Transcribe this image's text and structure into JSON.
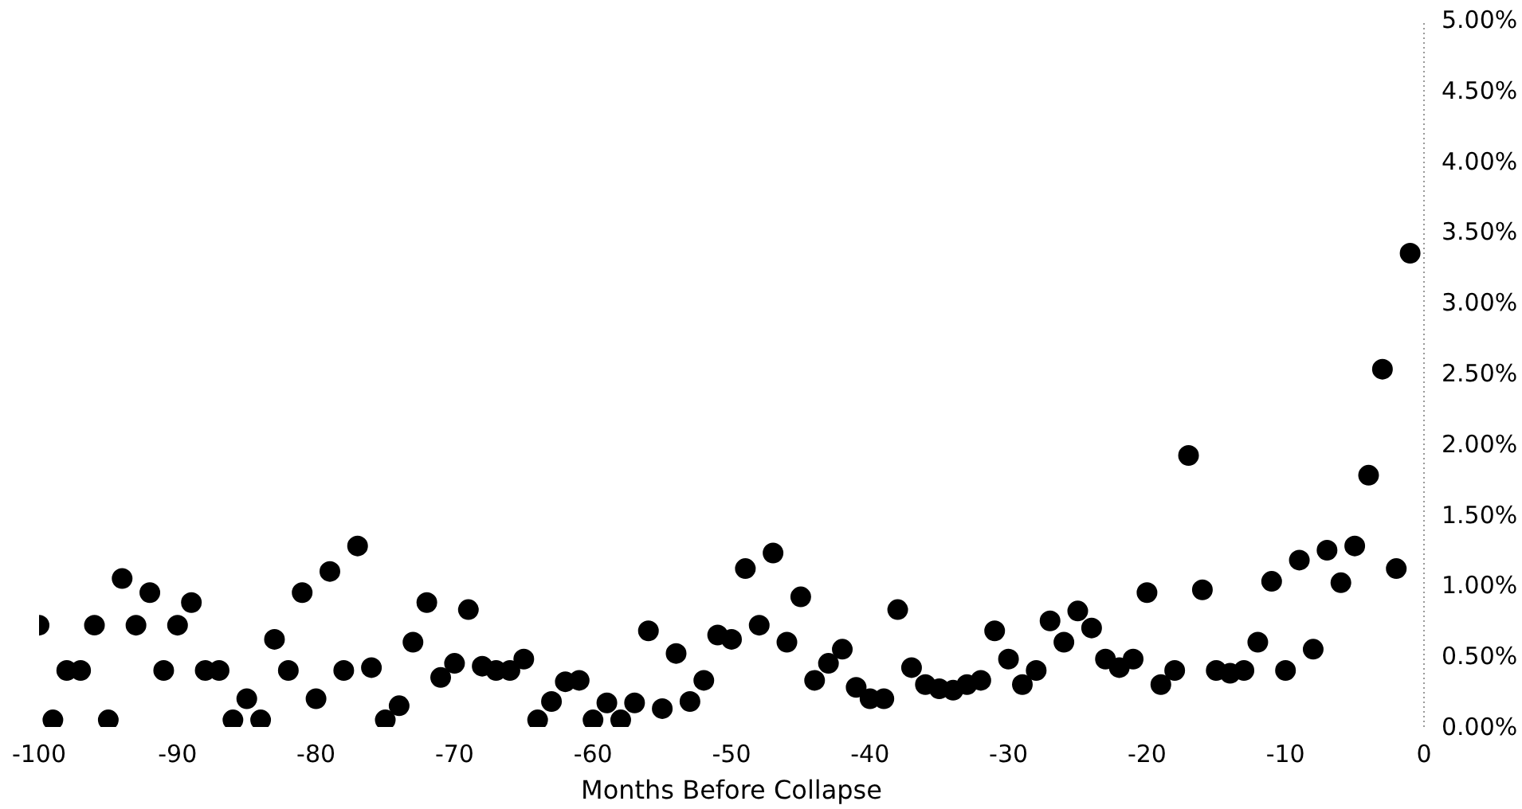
{
  "chart_data": {
    "type": "scatter",
    "xlabel": "Months Before Collapse",
    "x": [
      -100,
      -99,
      -98,
      -97,
      -96,
      -95,
      -94,
      -93,
      -92,
      -91,
      -90,
      -89,
      -88,
      -87,
      -86,
      -85,
      -84,
      -83,
      -82,
      -81,
      -80,
      -79,
      -78,
      -77,
      -76,
      -75,
      -74,
      -73,
      -72,
      -71,
      -70,
      -69,
      -68,
      -67,
      -66,
      -65,
      -64,
      -63,
      -62,
      -61,
      -60,
      -59,
      -58,
      -57,
      -56,
      -55,
      -54,
      -53,
      -52,
      -51,
      -50,
      -49,
      -48,
      -47,
      -46,
      -45,
      -44,
      -43,
      -42,
      -41,
      -40,
      -39,
      -38,
      -37,
      -36,
      -35,
      -34,
      -33,
      -32,
      -31,
      -30,
      -29,
      -28,
      -27,
      -26,
      -25,
      -24,
      -23,
      -22,
      -21,
      -20,
      -19,
      -18,
      -17,
      -16,
      -15,
      -14,
      -13,
      -12,
      -11,
      -10,
      -9,
      -8,
      -7,
      -6,
      -5,
      -4,
      -3,
      -2,
      -1
    ],
    "series": [
      {
        "color": "#000000",
        "values": [
          0.72,
          0.05,
          0.4,
          0.4,
          0.72,
          0.05,
          1.05,
          0.72,
          0.95,
          0.4,
          0.72,
          0.88,
          0.4,
          0.4,
          0.05,
          0.2,
          0.05,
          0.62,
          0.4,
          0.95,
          0.2,
          1.1,
          0.4,
          1.28,
          0.42,
          0.05,
          0.15,
          0.6,
          0.88,
          0.35,
          0.45,
          0.83,
          0.43,
          0.4,
          0.4,
          0.48,
          0.05,
          0.18,
          0.32,
          0.33,
          0.05,
          0.17,
          0.05,
          0.17,
          0.68,
          0.13,
          0.52,
          0.18,
          0.33,
          0.65,
          0.62,
          1.12,
          0.72,
          1.23,
          0.6,
          0.92,
          0.33,
          0.45,
          0.55,
          0.28,
          0.2,
          0.2,
          0.83,
          0.42,
          0.3,
          0.27,
          0.26,
          0.3,
          0.33,
          0.68,
          0.48,
          0.3,
          0.4,
          0.75,
          0.6,
          0.82,
          0.7,
          0.48,
          0.42,
          0.48,
          0.95,
          0.3,
          0.4,
          1.92,
          0.97,
          0.4,
          0.38,
          0.4,
          0.6,
          1.03,
          0.4,
          1.18,
          0.55,
          1.25,
          1.02,
          1.28,
          1.78,
          2.53,
          1.12,
          3.35
        ]
      }
    ],
    "xlim": [
      -100,
      0
    ],
    "xticks": [
      -100,
      -90,
      -80,
      -70,
      -60,
      -50,
      -40,
      -30,
      -20,
      -10,
      0
    ],
    "ylim": [
      0,
      5
    ],
    "yticks": [
      {
        "value": 0,
        "label": "0.00%"
      },
      {
        "value": 0.5,
        "label": "0.50%"
      },
      {
        "value": 1,
        "label": "1.00%"
      },
      {
        "value": 1.5,
        "label": "1.50%"
      },
      {
        "value": 2,
        "label": "2.00%"
      },
      {
        "value": 2.5,
        "label": "2.50%"
      },
      {
        "value": 3,
        "label": "3.00%"
      },
      {
        "value": 3.5,
        "label": "3.50%"
      },
      {
        "value": 4,
        "label": "4.00%"
      },
      {
        "value": 4.5,
        "label": "4.50%"
      },
      {
        "value": 5,
        "label": "5.00%"
      }
    ],
    "marker": "circle",
    "grid": false
  }
}
